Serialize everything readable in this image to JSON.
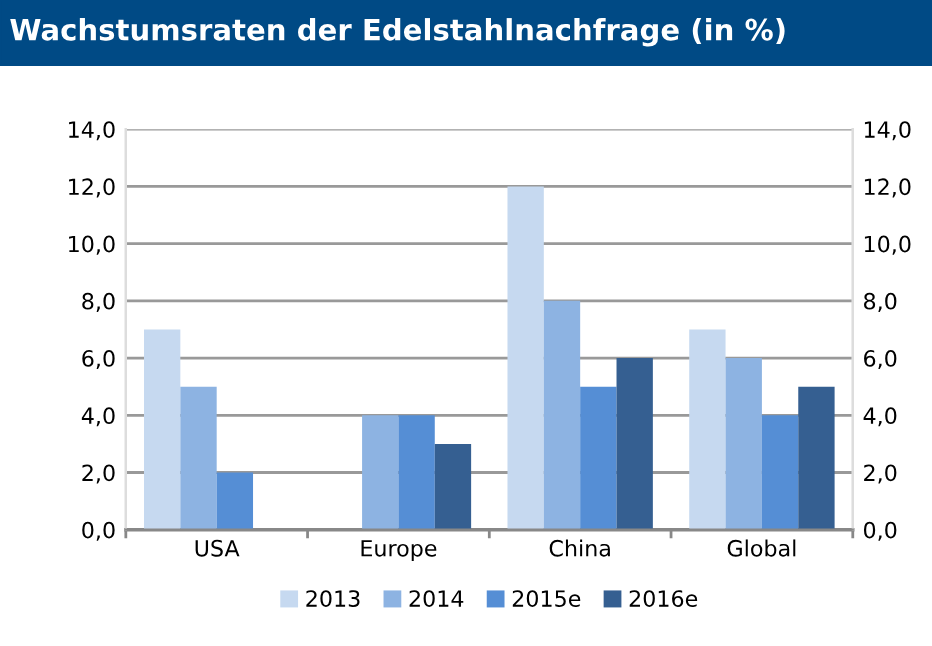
{
  "chart_data": {
    "type": "bar",
    "title": "Wachstumsraten der Edelstahlnachfrage (in %)",
    "categories": [
      "USA",
      "Europe",
      "China",
      "Global"
    ],
    "series": [
      {
        "name": "2013",
        "color": "#c6d9f0",
        "values": [
          7,
          null,
          12,
          7
        ]
      },
      {
        "name": "2014",
        "color": "#8db3e2",
        "values": [
          5,
          4,
          8,
          6
        ]
      },
      {
        "name": "2015e",
        "color": "#558ed5",
        "values": [
          2,
          4,
          5,
          4
        ]
      },
      {
        "name": "2016e",
        "color": "#355f91",
        "values": [
          null,
          3,
          6,
          5
        ]
      }
    ],
    "ylim": [
      0,
      14
    ],
    "yticks": [
      {
        "value": 0,
        "label": "0,0"
      },
      {
        "value": 2,
        "label": "2,0"
      },
      {
        "value": 4,
        "label": "4,0"
      },
      {
        "value": 6,
        "label": "6,0"
      },
      {
        "value": 8,
        "label": "8,0"
      },
      {
        "value": 10,
        "label": "10,0"
      },
      {
        "value": 12,
        "label": "12,0"
      },
      {
        "value": 14,
        "label": "14,0"
      }
    ],
    "y2lim": [
      0,
      14
    ],
    "y2ticks": [
      {
        "value": 0,
        "label": "0,0"
      },
      {
        "value": 2,
        "label": "2,0"
      },
      {
        "value": 4,
        "label": "4,0"
      },
      {
        "value": 6,
        "label": "6,0"
      },
      {
        "value": 8,
        "label": "8,0"
      },
      {
        "value": 10,
        "label": "10,0"
      },
      {
        "value": 12,
        "label": "12,0"
      },
      {
        "value": 14,
        "label": "14,0"
      }
    ],
    "grid": "y",
    "legend": "bottom"
  }
}
